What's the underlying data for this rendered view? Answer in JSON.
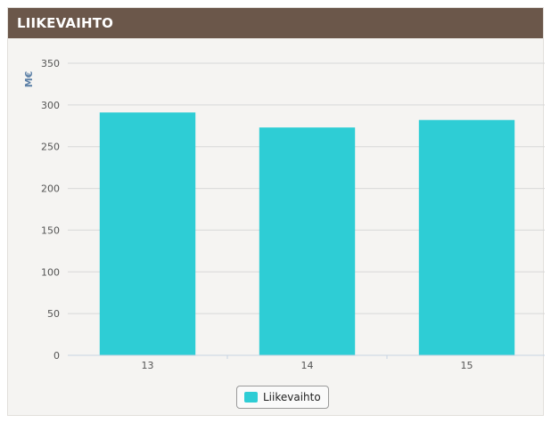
{
  "header": {
    "title": "LIIKEVAIHTO"
  },
  "colors": {
    "header_bg": "#6b574a",
    "bar": "#2ecdd5",
    "grid": "#d8d8d8",
    "unit": "#5b7fa6"
  },
  "chart_data": {
    "type": "bar",
    "title": "LIIKEVAIHTO",
    "categories": [
      "13",
      "14",
      "15"
    ],
    "series": [
      {
        "name": "Liikevaihto",
        "values": [
          291,
          273,
          282
        ]
      }
    ],
    "ylabel": "M€",
    "ylim": [
      0,
      350
    ],
    "yticks": [
      0,
      50,
      100,
      150,
      200,
      250,
      300,
      350
    ],
    "grid": true,
    "legend": "bottom-center"
  }
}
